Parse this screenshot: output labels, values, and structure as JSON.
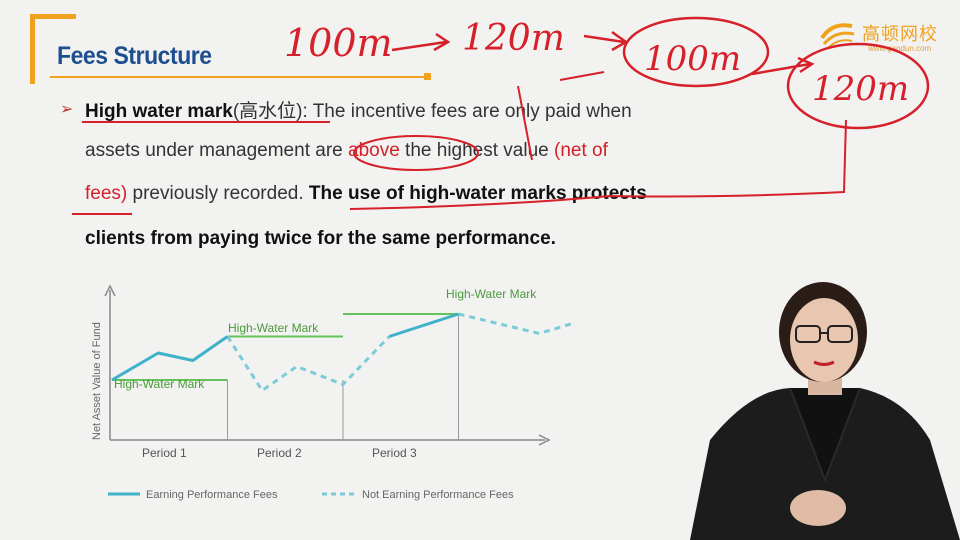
{
  "slide": {
    "title": "Fees Structure",
    "logo_text": "高顿网校",
    "logo_url": "www.gaodun.com"
  },
  "body": {
    "line1_term": "High water mark",
    "line1_term_cn": "(高水位)",
    "line1_rest": ": The incentive fees are only paid when",
    "line2_a": "assets under management ",
    "line2_b": "are ",
    "line2_red": "above",
    "line2_c": " the highest value ",
    "line2_red2": "(net of",
    "line3_red": "fees)",
    "line3_a": " previously recorded. ",
    "line3_bold": "The use of high-water marks protects",
    "line4_bold": "clients from paying twice for the same performance."
  },
  "annotations": {
    "a1": "100m",
    "a2": "120m",
    "a3": "100m",
    "a4": "120m"
  },
  "chart_data": {
    "type": "line",
    "ylabel": "Net Asset Value of Fund",
    "periods": [
      "Period 1",
      "Period 2",
      "Period 3"
    ],
    "hwm_labels": [
      "High-Water Mark",
      "High-Water Mark",
      "High-Water Mark"
    ],
    "legend": [
      "Earning Performance Fees",
      "Not Earning Performance Fees"
    ],
    "colors": {
      "earning": "#3fb1c9",
      "not_earning": "#7ccbd8",
      "hwm": "#66c25a",
      "axis": "#888888"
    },
    "x_range": [
      0,
      3
    ],
    "y_range": [
      0,
      10
    ],
    "hwm_levels": [
      {
        "start": 0,
        "end": 1,
        "level": 4.0
      },
      {
        "start": 1,
        "end": 2,
        "level": 6.9
      },
      {
        "start": 2,
        "end": 3,
        "level": 8.4
      }
    ],
    "earning_segments": [
      [
        [
          0,
          4.0
        ],
        [
          0.4,
          5.8
        ],
        [
          0.7,
          5.3
        ],
        [
          1.0,
          6.9
        ]
      ],
      [
        [
          2.4,
          6.9
        ],
        [
          3.0,
          8.4
        ]
      ]
    ],
    "not_earning_segments": [
      [
        [
          1.0,
          6.9
        ],
        [
          1.3,
          3.3
        ],
        [
          1.6,
          4.9
        ],
        [
          2.0,
          3.7
        ],
        [
          2.4,
          6.9
        ]
      ],
      [
        [
          3.0,
          8.4
        ],
        [
          3.7,
          7.1
        ],
        [
          4.0,
          7.8
        ]
      ]
    ]
  }
}
